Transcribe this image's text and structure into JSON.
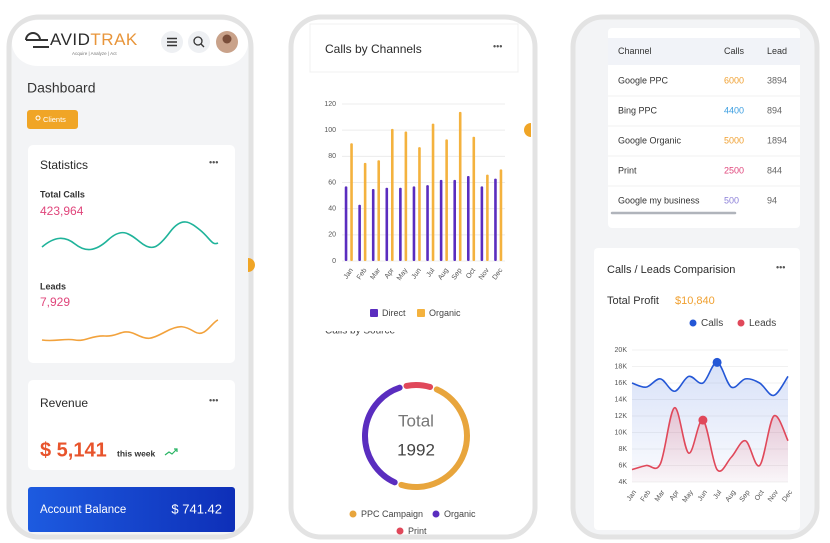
{
  "header": {
    "logo_left": "AVID",
    "logo_right": "TRAK",
    "tagline": "Acquire  |  Analyze  |  Act"
  },
  "dashboard": {
    "title": "Dashboard",
    "button": "Clients"
  },
  "statistics": {
    "title": "Statistics",
    "total_calls_label": "Total Calls",
    "total_calls": "423,964",
    "leads_label": "Leads",
    "leads": "7,929"
  },
  "revenue": {
    "title": "Revenue",
    "amount": "$ 5,141",
    "period": "this week"
  },
  "account_balance": {
    "label": "Account Balance",
    "amount": "$ 741.42"
  },
  "calls_by_channels": {
    "type": "bar",
    "title": "Calls by Channels",
    "categories": [
      "Jan",
      "Feb",
      "Mar",
      "Apr",
      "May",
      "Jun",
      "Jul",
      "Aug",
      "Sep",
      "Oct",
      "Nov",
      "Dec"
    ],
    "series": [
      {
        "name": "Direct",
        "color": "#5a2dbf",
        "values": [
          57,
          43,
          55,
          56,
          56,
          57,
          58,
          62,
          62,
          65,
          57,
          63
        ]
      },
      {
        "name": "Organic",
        "color": "#f4b23e",
        "values": [
          90,
          75,
          77,
          101,
          99,
          87,
          105,
          93,
          114,
          95,
          66,
          70
        ]
      }
    ],
    "ylim": [
      0,
      120
    ],
    "yticks": [
      0,
      20,
      40,
      60,
      80,
      100,
      120
    ],
    "grid": true
  },
  "calls_by_source": {
    "type": "donut",
    "title": "Calls by Source",
    "center_label": "Total",
    "total": 1992,
    "categories": [
      "PPC Campaign",
      "Organic",
      "Print"
    ],
    "values": [
      1000,
      800,
      192
    ],
    "colors": [
      "#e8a53c",
      "#5a2dbf",
      "#e0485a"
    ]
  },
  "channel_table": {
    "columns": [
      "Channel",
      "Calls",
      "Lead"
    ],
    "rows": [
      [
        "Google PPC",
        6000,
        3894
      ],
      [
        "Bing PPC",
        4400,
        894
      ],
      [
        "Google Organic",
        5000,
        1894
      ],
      [
        "Print",
        2500,
        844
      ],
      [
        "Google my business",
        500,
        94
      ]
    ],
    "call_colors": [
      "#f0a030",
      "#3a9de0",
      "#f0a030",
      "#e0457b",
      "#8b7fd8"
    ]
  },
  "comparison": {
    "type": "line",
    "title": "Calls / Leads Comparision",
    "profit_label": "Total Profit",
    "profit": "$10,840",
    "categories": [
      "Jan",
      "Feb",
      "Mar",
      "Apr",
      "May",
      "Jun",
      "Jul",
      "Aug",
      "Sep",
      "Oct",
      "Nov",
      "Dec"
    ],
    "series": [
      {
        "name": "Calls",
        "color": "#2457d6",
        "values": [
          16000,
          15500,
          16500,
          15000,
          16800,
          16000,
          18500,
          15500,
          16500,
          16000,
          14500,
          16800
        ],
        "marker_index": 6
      },
      {
        "name": "Leads",
        "color": "#e0485a",
        "values": [
          5500,
          6000,
          6200,
          13000,
          7500,
          11500,
          5500,
          7000,
          9000,
          6000,
          12000,
          9000
        ],
        "marker_index": 5
      }
    ],
    "ylim": [
      4000,
      20000
    ],
    "yticks": [
      {
        "value": 4000,
        "label": "4K"
      },
      {
        "value": 6000,
        "label": "6K"
      },
      {
        "value": 8000,
        "label": "8K"
      },
      {
        "value": 10000,
        "label": "10K"
      },
      {
        "value": 12000,
        "label": "12K"
      },
      {
        "value": 14000,
        "label": "14K"
      },
      {
        "value": 16000,
        "label": "16K"
      },
      {
        "value": 18000,
        "label": "18K"
      },
      {
        "value": 20000,
        "label": "20K"
      }
    ],
    "grid": true
  }
}
